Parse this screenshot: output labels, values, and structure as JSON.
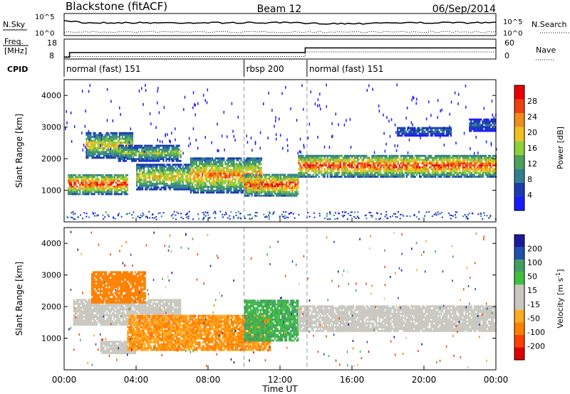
{
  "header": {
    "station": "Blackstone (fitACF)",
    "beam": "Beam 12",
    "date": "06/Sep/2014"
  },
  "labels": {
    "nsky": "N.Sky",
    "nsearch": "N.Search",
    "freq": "Freq.",
    "freq_unit": "[MHz]",
    "nave": "Nave",
    "cpid": "CPID"
  },
  "cpid_segments": [
    {
      "name": "normal (fast) 151",
      "start_hour": 0,
      "end_hour": 10
    },
    {
      "name": "rbsp 200",
      "start_hour": 10,
      "end_hour": 13.5
    },
    {
      "name": "normal (fast) 151",
      "start_hour": 13.5,
      "end_hour": 24
    }
  ],
  "colors": {
    "power_scale": [
      "#1a1aff",
      "#1a3caf",
      "#2f7f8f",
      "#4f9f5a",
      "#8fcf3a",
      "#f0c020",
      "#f08c1a",
      "#f04010",
      "#e80000"
    ],
    "velocity_scale": [
      "#e00000",
      "#ff4000",
      "#ff8000",
      "#ffaa22",
      "#c8c8c0",
      "#c8c8c0",
      "#40c040",
      "#40a060",
      "#2050b0",
      "#1a1a9f"
    ]
  },
  "chart_data": [
    {
      "type": "line",
      "name": "noise-panel",
      "series": [
        {
          "name": "N.Sky"
        },
        {
          "name": "N.Search"
        }
      ],
      "ytick_labels_left": [
        "10^5",
        "10^0"
      ],
      "ytick_labels_right": [
        "10^5",
        "10^0"
      ]
    },
    {
      "type": "line",
      "name": "freq-nave-panel",
      "ytick_labels_left": [
        "18",
        "8"
      ],
      "ytick_labels_right": [
        "60",
        "0"
      ],
      "freq_steps": [
        {
          "x_hour": 0,
          "value": 9
        },
        {
          "x_hour": 0.3,
          "value": 11.5
        },
        {
          "x_hour": 13.4,
          "value": 14
        }
      ],
      "nave_steps": [
        {
          "x_hour": 0,
          "value": 8
        },
        {
          "x_hour": 13.4,
          "value": 23
        }
      ]
    },
    {
      "type": "heatmap",
      "name": "power",
      "ylabel": "Slant Range [km]",
      "yticks": [
        1000,
        2000,
        3000,
        4000
      ],
      "ylim": [
        0,
        4500
      ],
      "xlim": [
        0,
        24
      ],
      "colorbar_label": "Power [dB]",
      "colorbar_ticks": [
        4,
        8,
        12,
        16,
        20,
        24,
        28
      ],
      "colorbar_range": [
        0,
        32
      ],
      "bands": [
        {
          "start_hour": 0.2,
          "end_hour": 3.5,
          "range_start_km": 850,
          "range_end_km": 1500,
          "peak_db": 28
        },
        {
          "start_hour": 1.2,
          "end_hour": 3.8,
          "range_start_km": 2000,
          "range_end_km": 2800,
          "peak_db": 20
        },
        {
          "start_hour": 3.0,
          "end_hour": 6.5,
          "range_start_km": 1900,
          "range_end_km": 2400,
          "peak_db": 16
        },
        {
          "start_hour": 4.0,
          "end_hour": 7.0,
          "range_start_km": 1000,
          "range_end_km": 1800,
          "peak_db": 20
        },
        {
          "start_hour": 7.0,
          "end_hour": 11.0,
          "range_start_km": 900,
          "range_end_km": 2000,
          "peak_db": 24
        },
        {
          "start_hour": 10.0,
          "end_hour": 13.0,
          "range_start_km": 800,
          "range_end_km": 1500,
          "peak_db": 28
        },
        {
          "start_hour": 13.0,
          "end_hour": 24.0,
          "range_start_km": 1400,
          "range_end_km": 2100,
          "peak_db": 28
        },
        {
          "start_hour": 18.5,
          "end_hour": 21.5,
          "range_start_km": 2700,
          "range_end_km": 3000,
          "peak_db": 8
        },
        {
          "start_hour": 22.5,
          "end_hour": 24.0,
          "range_start_km": 2850,
          "range_end_km": 3250,
          "peak_db": 8
        }
      ]
    },
    {
      "type": "heatmap",
      "name": "velocity",
      "ylabel": "Slant Range [km]",
      "yticks": [
        1000,
        2000,
        3000,
        4000
      ],
      "ylim": [
        0,
        4500
      ],
      "xlim": [
        0,
        24
      ],
      "xlabel": "Time UT",
      "xtick_labels": [
        "00:00",
        "04:00",
        "08:00",
        "12:00",
        "16:00",
        "20:00",
        "00:00"
      ],
      "colorbar_label": "Velocity [m s",
      "colorbar_label_sup": "-1",
      "colorbar_ticks": [
        "200",
        "100",
        "50",
        "15",
        "-15",
        "-50",
        "-100",
        "-200"
      ],
      "bands": [
        {
          "start_hour": 0.5,
          "end_hour": 6.5,
          "range_start_km": 1400,
          "range_end_km": 2200,
          "velocity": 0
        },
        {
          "start_hour": 1.5,
          "end_hour": 4.5,
          "range_start_km": 2100,
          "range_end_km": 3100,
          "velocity": -60
        },
        {
          "start_hour": 2.0,
          "end_hour": 4.0,
          "range_start_km": 500,
          "range_end_km": 900,
          "velocity": 0
        },
        {
          "start_hour": 3.5,
          "end_hour": 11.5,
          "range_start_km": 600,
          "range_end_km": 1700,
          "velocity": -50
        },
        {
          "start_hour": 10.0,
          "end_hour": 13.0,
          "range_start_km": 900,
          "range_end_km": 2200,
          "velocity": 30
        },
        {
          "start_hour": 13.0,
          "end_hour": 24.0,
          "range_start_km": 1200,
          "range_end_km": 2000,
          "velocity": 0
        }
      ]
    }
  ]
}
